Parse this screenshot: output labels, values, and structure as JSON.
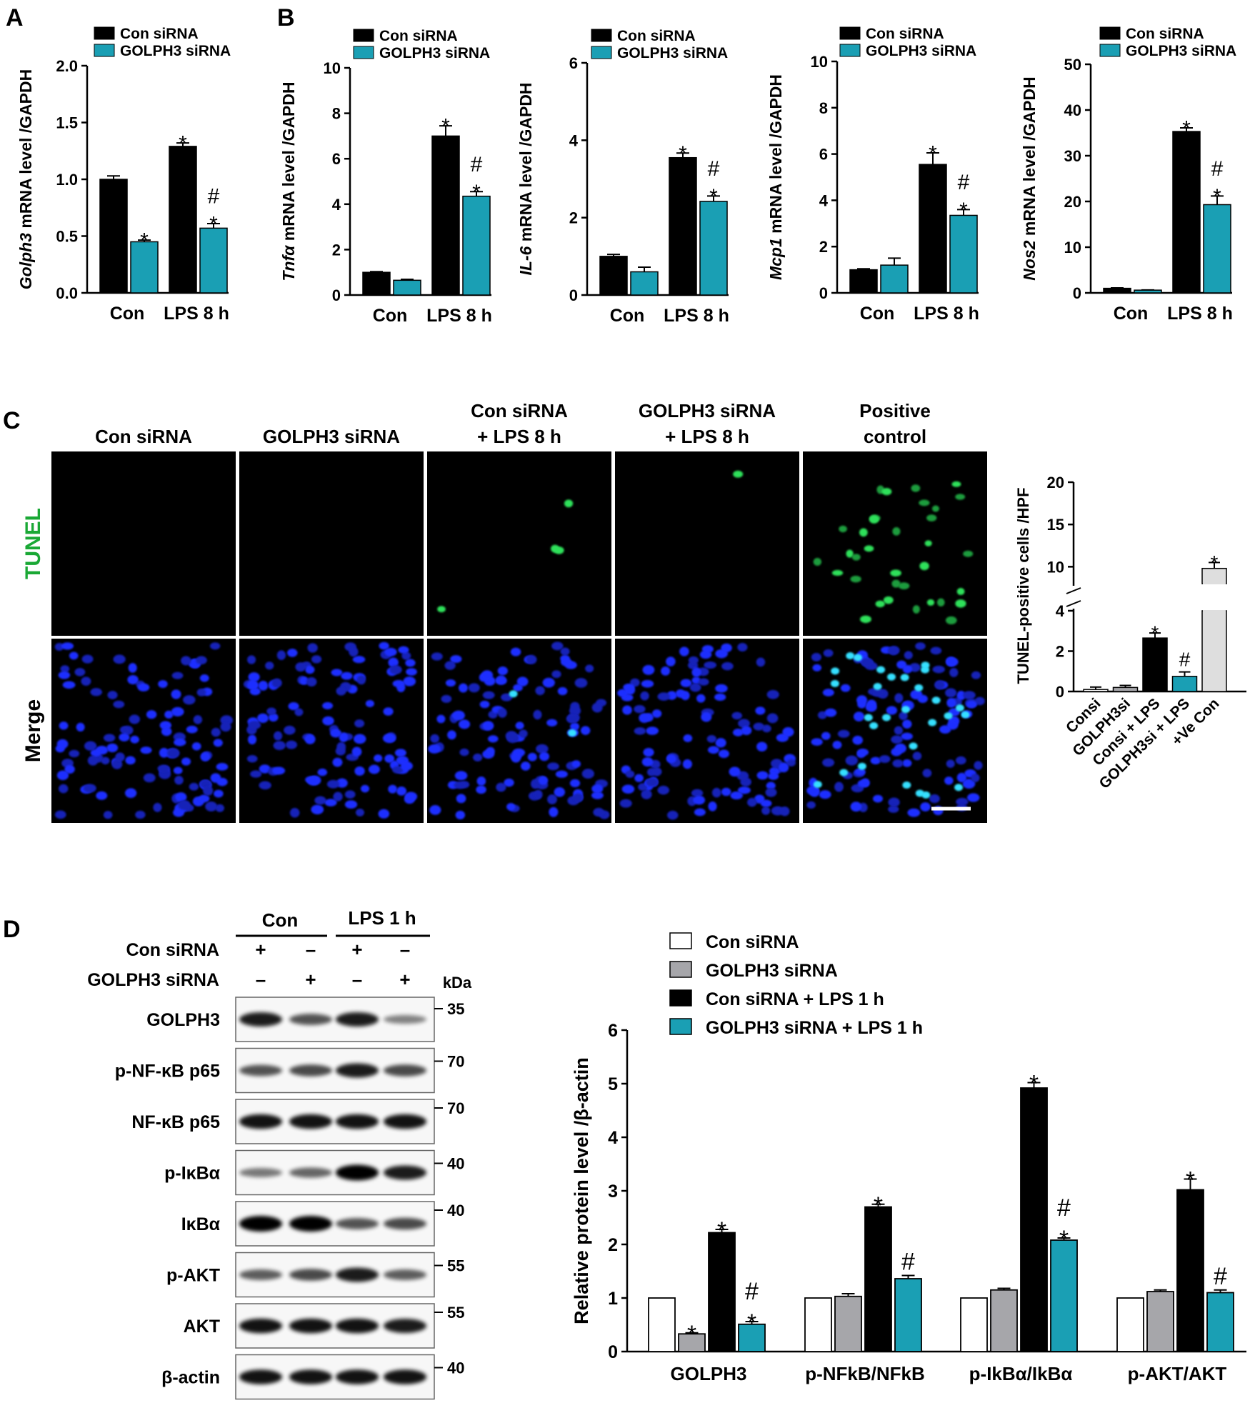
{
  "panels": {
    "A": "A",
    "B": "B",
    "C": "C",
    "D": "D"
  },
  "colors": {
    "con": "#000000",
    "golph3": "#1a9fb4",
    "white": "#ffffff",
    "grey": "#a6a6aa",
    "light": "#dedede"
  },
  "chart_data": [
    {
      "type": "bar",
      "panel": "A",
      "ylabel_italic": "Golph3",
      "ylabel_rest": " mRNA level /GAPDH",
      "categories": [
        "Con",
        "LPS 8 h"
      ],
      "ylim": [
        0,
        2.0
      ],
      "yticks": [
        "0.0",
        "0.5",
        "1.0",
        "1.5",
        "2.0"
      ],
      "legend": [
        "Con siRNA",
        "GOLPH3 siRNA"
      ],
      "series": [
        {
          "name": "Con siRNA",
          "values": [
            1.0,
            1.29
          ],
          "errors": [
            0.03,
            0.03
          ],
          "marks": [
            "",
            "*"
          ]
        },
        {
          "name": "GOLPH3 siRNA",
          "values": [
            0.45,
            0.57
          ],
          "errors": [
            0.015,
            0.04
          ],
          "marks": [
            "*",
            "#\n*"
          ]
        }
      ]
    },
    {
      "type": "bar",
      "panel": "B",
      "ylabel_italic": "Tnfα",
      "ylabel_rest": " mRNA level /GAPDH",
      "categories": [
        "Con",
        "LPS 8 h"
      ],
      "ylim": [
        0,
        10
      ],
      "yticks": [
        "0",
        "2",
        "4",
        "6",
        "8",
        "10"
      ],
      "legend": [
        "Con siRNA",
        "GOLPH3 siRNA"
      ],
      "series": [
        {
          "name": "Con siRNA",
          "values": [
            1.0,
            7.0
          ],
          "errors": [
            0.03,
            0.45
          ],
          "marks": [
            "",
            "*"
          ]
        },
        {
          "name": "GOLPH3 siRNA",
          "values": [
            0.65,
            4.35
          ],
          "errors": [
            0.04,
            0.2
          ],
          "marks": [
            "",
            "#\n*"
          ]
        }
      ]
    },
    {
      "type": "bar",
      "ylabel_italic": "IL-6",
      "ylabel_rest": " mRNA level /GAPDH",
      "categories": [
        "Con",
        "LPS 8 h"
      ],
      "ylim": [
        0,
        6
      ],
      "yticks": [
        "0",
        "2",
        "4",
        "6"
      ],
      "legend": [
        "Con siRNA",
        "GOLPH3 siRNA"
      ],
      "series": [
        {
          "name": "Con siRNA",
          "values": [
            1.0,
            3.55
          ],
          "errors": [
            0.05,
            0.12
          ],
          "marks": [
            "",
            "*"
          ]
        },
        {
          "name": "GOLPH3 siRNA",
          "values": [
            0.6,
            2.42
          ],
          "errors": [
            0.12,
            0.14
          ],
          "marks": [
            "",
            "#\n*"
          ]
        }
      ]
    },
    {
      "type": "bar",
      "ylabel_italic": "Mcp1",
      "ylabel_rest": " mRNA level /GAPDH",
      "categories": [
        "Con",
        "LPS 8 h"
      ],
      "ylim": [
        0,
        10
      ],
      "yticks": [
        "0",
        "2",
        "4",
        "6",
        "8",
        "10"
      ],
      "legend": [
        "Con siRNA",
        "GOLPH3 siRNA"
      ],
      "series": [
        {
          "name": "Con siRNA",
          "values": [
            1.0,
            5.55
          ],
          "errors": [
            0.04,
            0.5
          ],
          "marks": [
            "",
            "*"
          ]
        },
        {
          "name": "GOLPH3 siRNA",
          "values": [
            1.2,
            3.35
          ],
          "errors": [
            0.3,
            0.25
          ],
          "marks": [
            "",
            "#\n*"
          ]
        }
      ]
    },
    {
      "type": "bar",
      "ylabel_italic": "Nos2",
      "ylabel_rest": " mRNA level /GAPDH",
      "categories": [
        "Con",
        "LPS 8 h"
      ],
      "ylim": [
        0,
        50
      ],
      "yticks": [
        "0",
        "10",
        "20",
        "30",
        "40",
        "50"
      ],
      "legend": [
        "Con siRNA",
        "GOLPH3 siRNA"
      ],
      "series": [
        {
          "name": "Con siRNA",
          "values": [
            1.0,
            35.3
          ],
          "errors": [
            0.1,
            0.8
          ],
          "marks": [
            "",
            "*"
          ]
        },
        {
          "name": "GOLPH3 siRNA",
          "values": [
            0.6,
            19.3
          ],
          "errors": [
            0.05,
            1.9
          ],
          "marks": [
            "",
            "#\n*"
          ]
        }
      ]
    },
    {
      "type": "bar",
      "panel": "C",
      "ylabel": "TUNEL-positive cells /HPF",
      "categories": [
        "Consi",
        "GOLPH3si",
        "Consi + LPS",
        "GOLPH3si + LPS",
        "+Ve Con"
      ],
      "ylim_lower": [
        0,
        4
      ],
      "ylim_upper": [
        8,
        20
      ],
      "axis_break": true,
      "yticks_lower": [
        "0",
        "2",
        "4"
      ],
      "yticks_upper": [
        "10",
        "15",
        "20"
      ],
      "values": [
        0.1,
        0.2,
        2.65,
        0.75,
        9.8
      ],
      "errors": [
        0.12,
        0.1,
        0.25,
        0.22,
        0.7
      ],
      "marks": [
        "",
        "",
        "*",
        "#",
        "*"
      ],
      "bar_colors": [
        "white",
        "grey",
        "con",
        "golph3",
        "light"
      ]
    },
    {
      "type": "bar",
      "panel": "D",
      "ylabel": "Relative protein level /β-actin",
      "categories": [
        "GOLPH3",
        "p-NFkB/NFkB",
        "p-IkBα/IkBα",
        "p-AKT/AKT"
      ],
      "ylim": [
        0,
        6
      ],
      "yticks": [
        "0",
        "1",
        "2",
        "3",
        "4",
        "5",
        "6"
      ],
      "legend": [
        "Con siRNA",
        "GOLPH3 siRNA",
        "Con siRNA + LPS 1 h",
        "GOLPH3 siRNA + LPS 1 h"
      ],
      "series": [
        {
          "name": "Con siRNA",
          "values": [
            1.0,
            1.0,
            1.0,
            1.0
          ],
          "errors": [
            0,
            0,
            0,
            0
          ],
          "marks": [
            "",
            "",
            "",
            ""
          ]
        },
        {
          "name": "GOLPH3 siRNA",
          "values": [
            0.33,
            1.03,
            1.15,
            1.12
          ],
          "errors": [
            0.02,
            0.05,
            0.03,
            0.03
          ],
          "marks": [
            "*",
            "",
            "",
            ""
          ]
        },
        {
          "name": "Con siRNA + LPS 1 h",
          "values": [
            2.22,
            2.7,
            4.92,
            3.02
          ],
          "errors": [
            0.06,
            0.05,
            0.1,
            0.2
          ],
          "marks": [
            "*",
            "*",
            "*",
            "*"
          ]
        },
        {
          "name": "GOLPH3 siRNA + LPS 1 h",
          "values": [
            0.51,
            1.36,
            2.08,
            1.1
          ],
          "errors": [
            0.05,
            0.06,
            0.04,
            0.05
          ],
          "marks": [
            "#\n*",
            "#",
            "#\n*",
            "#"
          ]
        }
      ]
    }
  ],
  "micrographs": {
    "column_headers": [
      "Con siRNA",
      "GOLPH3 siRNA",
      "Con siRNA\n+ LPS 8 h",
      "GOLPH3 siRNA\n+ LPS 8 h",
      "Positive\ncontrol"
    ],
    "row_labels": [
      "TUNEL",
      "Merge"
    ]
  },
  "western_blot": {
    "groups": [
      "Con",
      "LPS 1 h"
    ],
    "condition_rows": [
      {
        "label": "Con siRNA",
        "signs": [
          "+",
          "–",
          "+",
          "–"
        ]
      },
      {
        "label": "GOLPH3 siRNA",
        "signs": [
          "–",
          "+",
          "–",
          "+"
        ]
      }
    ],
    "kda_label": "kDa",
    "blots": [
      {
        "label": "GOLPH3",
        "markers": [
          "35"
        ],
        "intensity": [
          0.85,
          0.55,
          0.85,
          0.3
        ]
      },
      {
        "label": "p-NF-κB p65",
        "markers": [
          "70"
        ],
        "intensity": [
          0.55,
          0.6,
          0.85,
          0.6
        ]
      },
      {
        "label": "NF-κB p65",
        "markers": [
          "70"
        ],
        "intensity": [
          0.9,
          0.9,
          0.9,
          0.9
        ]
      },
      {
        "label": "p-IκBα",
        "markers": [
          "40"
        ],
        "intensity": [
          0.35,
          0.45,
          1.0,
          0.85
        ]
      },
      {
        "label": "IκBα",
        "markers": [
          "40"
        ],
        "intensity": [
          1.0,
          1.0,
          0.55,
          0.6
        ]
      },
      {
        "label": "p-AKT",
        "markers": [
          "55"
        ],
        "intensity": [
          0.5,
          0.6,
          0.85,
          0.5
        ]
      },
      {
        "label": "AKT",
        "markers": [
          "55"
        ],
        "intensity": [
          0.9,
          0.9,
          0.9,
          0.85
        ]
      },
      {
        "label": "β-actin",
        "markers": [
          "40"
        ],
        "intensity": [
          0.9,
          0.9,
          0.9,
          0.9
        ]
      }
    ]
  }
}
